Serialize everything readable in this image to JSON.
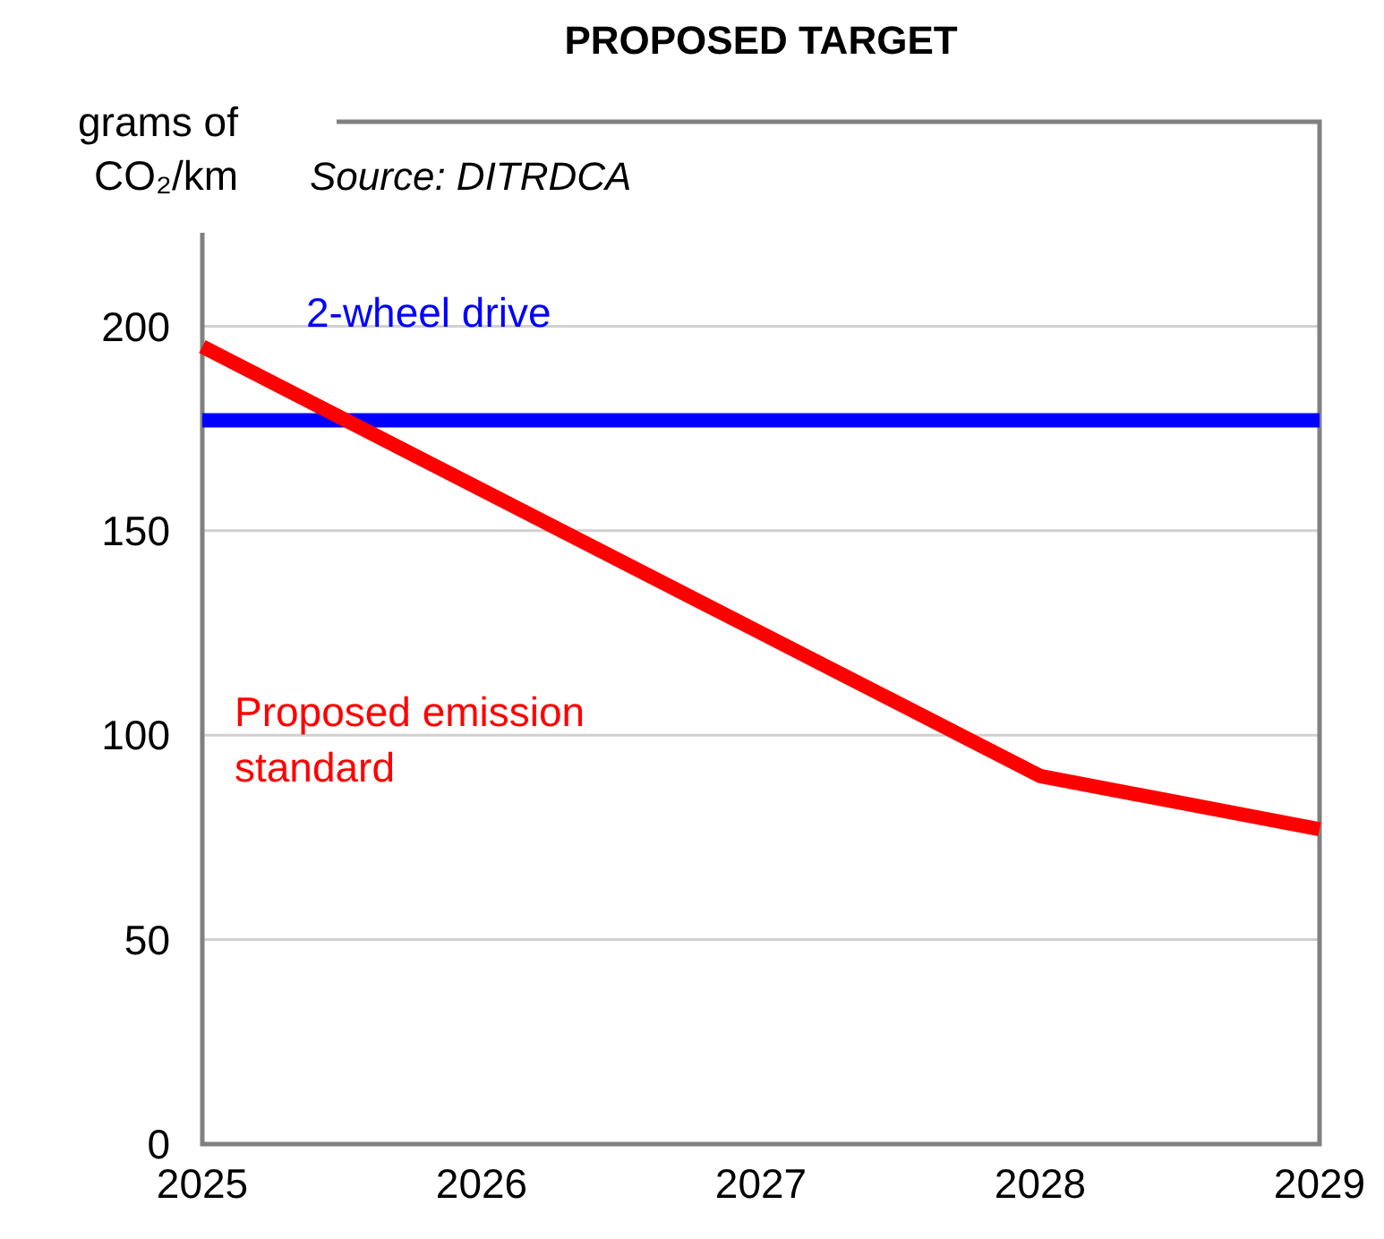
{
  "chart_data": {
    "type": "line",
    "title": "PROPOSED TARGET",
    "ylabel": "grams of CO₂/km",
    "annotations": [
      "Source: DITRDCA"
    ],
    "x": [
      2025,
      2026,
      2027,
      2028,
      2029
    ],
    "series": [
      {
        "name": "2-wheel drive",
        "color": "#0000ff",
        "values": [
          177,
          177,
          177,
          177,
          177
        ]
      },
      {
        "name": "Proposed emission standard",
        "color": "#ff0000",
        "values": [
          195,
          160,
          125,
          90,
          77
        ]
      }
    ],
    "xlim": [
      2025,
      2029
    ],
    "xticks": [
      2025,
      2026,
      2027,
      2028,
      2029
    ],
    "ylim": [
      0,
      250
    ],
    "yticks": [
      0,
      50,
      100,
      150,
      200
    ],
    "grid": "y",
    "marker": "none",
    "line_style": "solid"
  }
}
